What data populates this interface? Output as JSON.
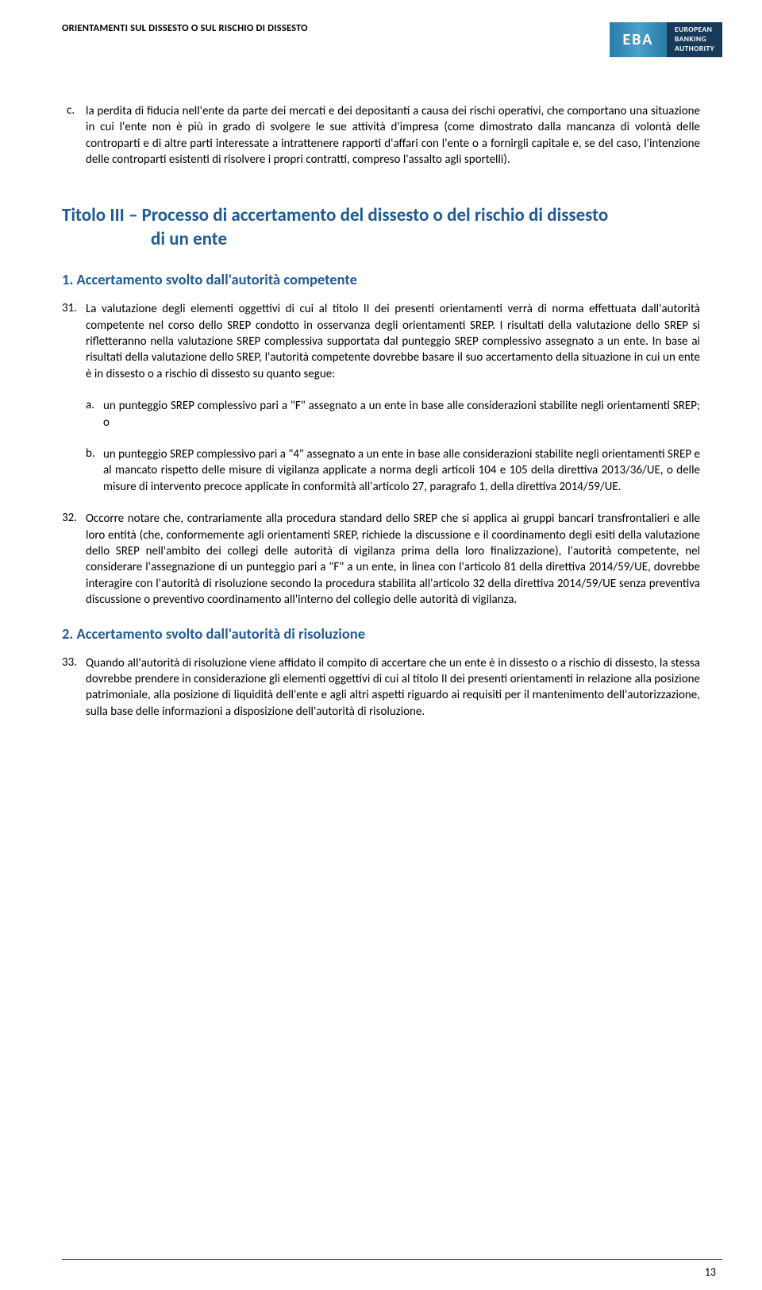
{
  "header": {
    "title": "ORIENTAMENTI SUL DISSESTO O SUL RISCHIO DI DISSESTO",
    "logo_abbrev": "EBA",
    "logo_line1": "EUROPEAN",
    "logo_line2": "BANKING",
    "logo_line3": "AUTHORITY"
  },
  "para_c": {
    "marker": "c.",
    "text": "la perdita di fiducia nell'ente da parte dei mercati e dei depositanti a causa dei rischi operativi, che comportano una situazione in cui l'ente non è più in grado di svolgere le sue attività d'impresa (come dimostrato dalla mancanza di volontà delle controparti e di altre parti interessate a intrattenere rapporti d'affari con l'ente o a fornirgli capitale e, se del caso, l'intenzione delle controparti esistenti di risolvere i propri contratti, compreso l'assalto agli sportelli)."
  },
  "titolo3": {
    "heading_line1": "Titolo III – Processo di accertamento del dissesto o del rischio di dissesto",
    "heading_line2": "di un ente"
  },
  "sub1": {
    "heading": "1.  Accertamento svolto dall'autorità competente"
  },
  "para31": {
    "number": "31.",
    "text": "La valutazione degli elementi oggettivi di cui al titolo II dei presenti orientamenti verrà di norma effettuata dall'autorità competente nel corso dello SREP condotto in osservanza degli orientamenti SREP. I risultati della valutazione dello SREP si rifletteranno nella valutazione SREP complessiva supportata dal punteggio SREP complessivo assegnato a un ente. In base ai risultati della valutazione dello SREP, l'autorità competente dovrebbe basare il suo accertamento della situazione in cui un ente è in dissesto o a rischio di dissesto su quanto segue:"
  },
  "para31a": {
    "marker": "a.",
    "text": "un punteggio SREP complessivo pari a \"F\" assegnato a un ente in base alle considerazioni stabilite negli orientamenti SREP; o"
  },
  "para31b": {
    "marker": "b.",
    "text": "un punteggio SREP complessivo pari a \"4\" assegnato a un ente in base alle considerazioni stabilite negli orientamenti SREP e al mancato rispetto delle misure di vigilanza applicate a norma degli articoli 104 e 105 della direttiva 2013/36/UE, o delle misure di intervento precoce applicate in conformità all'articolo 27, paragrafo 1, della direttiva 2014/59/UE."
  },
  "para32": {
    "number": "32.",
    "text": "Occorre notare che, contrariamente alla procedura standard dello SREP che si applica ai gruppi bancari transfrontalieri e alle loro entità (che, conformemente agli orientamenti SREP, richiede la discussione e il coordinamento degli esiti della valutazione dello SREP nell'ambito dei collegi delle autorità di vigilanza prima della loro finalizzazione), l'autorità competente, nel considerare l'assegnazione di un punteggio pari a \"F\" a un ente, in linea con l'articolo 81 della direttiva 2014/59/UE, dovrebbe interagire con l'autorità di risoluzione secondo la procedura stabilita all'articolo 32 della direttiva 2014/59/UE senza preventiva discussione o preventivo coordinamento all'interno del collegio delle autorità di vigilanza."
  },
  "sub2": {
    "heading": "2.  Accertamento svolto dall'autorità di risoluzione"
  },
  "para33": {
    "number": "33.",
    "text": "Quando all'autorità di risoluzione viene affidato il compito di accertare che un ente è in dissesto o a rischio di dissesto, la stessa dovrebbe prendere in considerazione gli elementi oggettivi di cui al titolo II dei presenti orientamenti in relazione alla posizione patrimoniale, alla posizione di liquidità dell'ente e agli altri aspetti riguardo ai requisiti per il mantenimento dell'autorizzazione, sulla base delle informazioni a disposizione dell'autorità di risoluzione."
  },
  "page_number": "13"
}
